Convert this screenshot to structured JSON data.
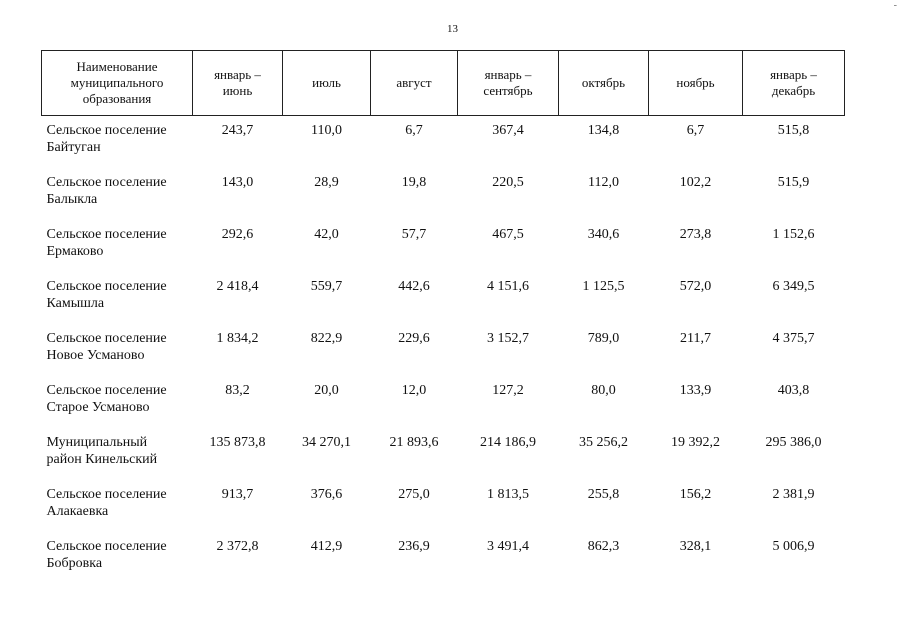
{
  "page_number": "13",
  "corner_mark": "-",
  "table": {
    "headers": [
      [
        "Наименование",
        "муниципального",
        "образования"
      ],
      [
        "январь –",
        "июнь"
      ],
      [
        "июль"
      ],
      [
        "август"
      ],
      [
        "январь –",
        "сентябрь"
      ],
      [
        "октябрь"
      ],
      [
        "ноябрь"
      ],
      [
        "январь –",
        "декабрь"
      ]
    ],
    "rows": [
      {
        "name": [
          "Сельское поселение",
          "Байтуган"
        ],
        "values": [
          "243,7",
          "110,0",
          "6,7",
          "367,4",
          "134,8",
          "6,7",
          "515,8"
        ]
      },
      {
        "name": [
          "Сельское поселение",
          "Балыкла"
        ],
        "values": [
          "143,0",
          "28,9",
          "19,8",
          "220,5",
          "112,0",
          "102,2",
          "515,9"
        ]
      },
      {
        "name": [
          "Сельское поселение",
          "Ермаково"
        ],
        "values": [
          "292,6",
          "42,0",
          "57,7",
          "467,5",
          "340,6",
          "273,8",
          "1 152,6"
        ]
      },
      {
        "name": [
          "Сельское поселение",
          "Камышла"
        ],
        "values": [
          "2 418,4",
          "559,7",
          "442,6",
          "4 151,6",
          "1 125,5",
          "572,0",
          "6 349,5"
        ]
      },
      {
        "name": [
          "Сельское поселение",
          "Новое Усманово"
        ],
        "values": [
          "1 834,2",
          "822,9",
          "229,6",
          "3 152,7",
          "789,0",
          "211,7",
          "4 375,7"
        ]
      },
      {
        "name": [
          "Сельское поселение",
          "Старое Усманово"
        ],
        "values": [
          "83,2",
          "20,0",
          "12,0",
          "127,2",
          "80,0",
          "133,9",
          "403,8"
        ]
      },
      {
        "name": [
          "Муниципальный",
          "район Кинельский"
        ],
        "values": [
          "135 873,8",
          "34 270,1",
          "21 893,6",
          "214 186,9",
          "35 256,2",
          "19 392,2",
          "295 386,0"
        ]
      },
      {
        "name": [
          "Сельское поселение",
          "Алакаевка"
        ],
        "values": [
          "913,7",
          "376,6",
          "275,0",
          "1 813,5",
          "255,8",
          "156,2",
          "2 381,9"
        ]
      },
      {
        "name": [
          "Сельское поселение",
          "Бобровка"
        ],
        "values": [
          "2 372,8",
          "412,9",
          "236,9",
          "3 491,4",
          "862,3",
          "328,1",
          "5 006,9"
        ]
      }
    ]
  }
}
